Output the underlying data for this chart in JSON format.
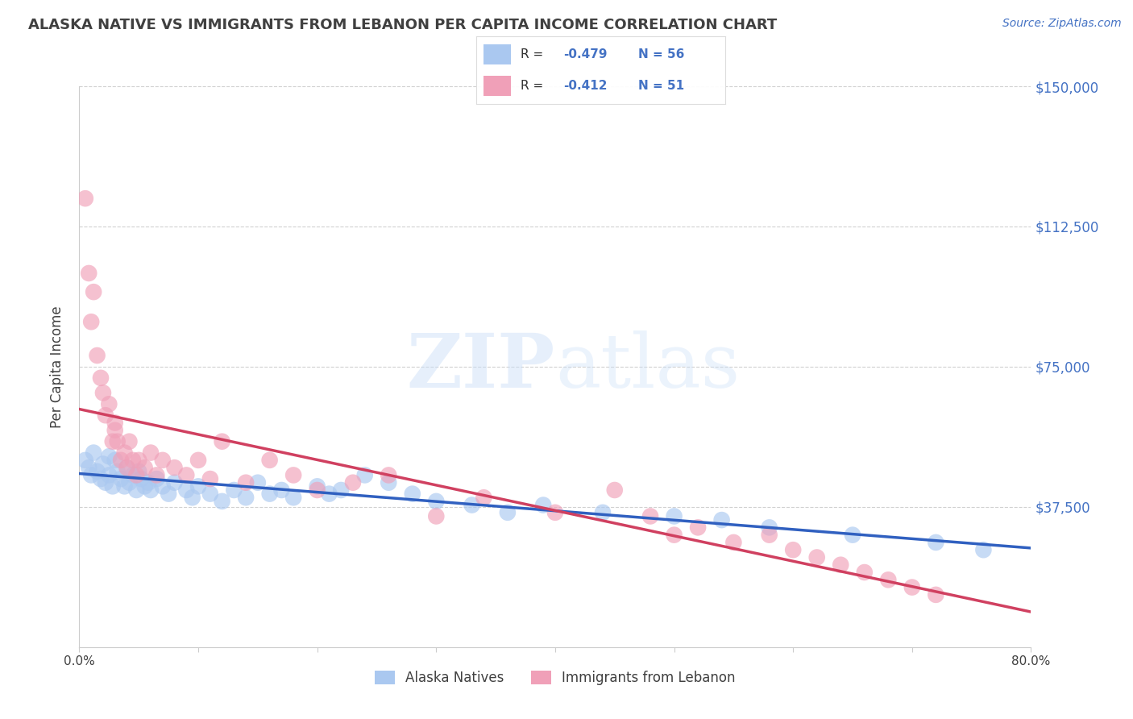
{
  "title": "ALASKA NATIVE VS IMMIGRANTS FROM LEBANON PER CAPITA INCOME CORRELATION CHART",
  "source": "Source: ZipAtlas.com",
  "ylabel": "Per Capita Income",
  "xlim": [
    0.0,
    0.8
  ],
  "ylim": [
    0,
    150000
  ],
  "yticks": [
    0,
    37500,
    75000,
    112500,
    150000
  ],
  "ytick_labels_right": [
    "",
    "$37,500",
    "$75,000",
    "$112,500",
    "$150,000"
  ],
  "xtick_positions": [
    0.0,
    0.1,
    0.2,
    0.3,
    0.4,
    0.5,
    0.6,
    0.7,
    0.8
  ],
  "xtick_labels": [
    "0.0%",
    "",
    "",
    "",
    "",
    "",
    "",
    "",
    "80.0%"
  ],
  "background_color": "#ffffff",
  "grid_color": "#cccccc",
  "alaska_color": "#aac8f0",
  "lebanon_color": "#f0a0b8",
  "alaska_line_color": "#3060c0",
  "lebanon_line_color": "#d04060",
  "title_color": "#404040",
  "label_color": "#4472c4",
  "legend_r1": "-0.479",
  "legend_n1": "56",
  "legend_r2": "-0.412",
  "legend_n2": "51",
  "watermark_text": "ZIPatlas",
  "alaska_label": "Alaska Natives",
  "lebanon_label": "Immigrants from Lebanon",
  "alaska_x": [
    0.005,
    0.008,
    0.01,
    0.012,
    0.015,
    0.018,
    0.02,
    0.022,
    0.025,
    0.025,
    0.028,
    0.03,
    0.032,
    0.035,
    0.038,
    0.04,
    0.042,
    0.045,
    0.048,
    0.05,
    0.052,
    0.055,
    0.058,
    0.06,
    0.065,
    0.07,
    0.075,
    0.08,
    0.09,
    0.095,
    0.1,
    0.11,
    0.12,
    0.13,
    0.14,
    0.15,
    0.16,
    0.17,
    0.18,
    0.2,
    0.21,
    0.22,
    0.24,
    0.26,
    0.28,
    0.3,
    0.33,
    0.36,
    0.39,
    0.44,
    0.5,
    0.54,
    0.58,
    0.65,
    0.72,
    0.76
  ],
  "alaska_y": [
    50000,
    48000,
    46000,
    52000,
    47000,
    45000,
    49000,
    44000,
    51000,
    46000,
    43000,
    50000,
    47000,
    45000,
    43000,
    48000,
    44000,
    46000,
    42000,
    47000,
    45000,
    43000,
    44000,
    42000,
    45000,
    43000,
    41000,
    44000,
    42000,
    40000,
    43000,
    41000,
    39000,
    42000,
    40000,
    44000,
    41000,
    42000,
    40000,
    43000,
    41000,
    42000,
    46000,
    44000,
    41000,
    39000,
    38000,
    36000,
    38000,
    36000,
    35000,
    34000,
    32000,
    30000,
    28000,
    26000
  ],
  "lebanon_x": [
    0.005,
    0.008,
    0.01,
    0.012,
    0.015,
    0.018,
    0.02,
    0.022,
    0.025,
    0.028,
    0.03,
    0.03,
    0.032,
    0.035,
    0.038,
    0.04,
    0.042,
    0.045,
    0.048,
    0.05,
    0.055,
    0.06,
    0.065,
    0.07,
    0.08,
    0.09,
    0.1,
    0.11,
    0.12,
    0.14,
    0.16,
    0.18,
    0.2,
    0.23,
    0.26,
    0.3,
    0.34,
    0.4,
    0.45,
    0.48,
    0.5,
    0.52,
    0.55,
    0.58,
    0.6,
    0.62,
    0.64,
    0.66,
    0.68,
    0.7,
    0.72
  ],
  "lebanon_y": [
    120000,
    100000,
    87000,
    95000,
    78000,
    72000,
    68000,
    62000,
    65000,
    55000,
    60000,
    58000,
    55000,
    50000,
    52000,
    48000,
    55000,
    50000,
    46000,
    50000,
    48000,
    52000,
    46000,
    50000,
    48000,
    46000,
    50000,
    45000,
    55000,
    44000,
    50000,
    46000,
    42000,
    44000,
    46000,
    35000,
    40000,
    36000,
    42000,
    35000,
    30000,
    32000,
    28000,
    30000,
    26000,
    24000,
    22000,
    20000,
    18000,
    16000,
    14000
  ]
}
